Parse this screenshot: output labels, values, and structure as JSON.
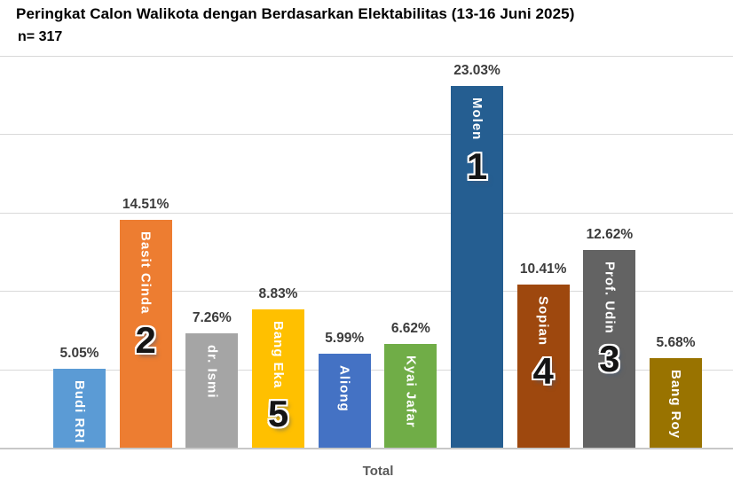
{
  "header": {
    "title": "Peringkat Calon Walikota dengan Berdasarkan Elektabilitas (13-16 Juni 2025)",
    "subtitle": "n= 317"
  },
  "chart_data": {
    "type": "bar",
    "title": "Peringkat Calon Walikota dengan Berdasarkan Elektabilitas (13-16 Juni 2025)",
    "subtitle": "n= 317",
    "sample_size": 317,
    "categories": [
      "Budi RRI",
      "Basit Cinda",
      "dr. Ismi",
      "Bang Eka",
      "Aliong",
      "Kyai Jafar",
      "Molen",
      "Sopian",
      "Prof. Udin",
      "Bang Roy"
    ],
    "values": [
      5.05,
      14.51,
      7.26,
      8.83,
      5.99,
      6.62,
      23.03,
      10.41,
      12.62,
      5.68
    ],
    "value_labels": [
      "5.05%",
      "14.51%",
      "7.26%",
      "8.83%",
      "5.99%",
      "6.62%",
      "23.03%",
      "10.41%",
      "12.62%",
      "5.68%"
    ],
    "ranks": [
      "",
      "2",
      "",
      "5",
      "",
      "",
      "1",
      "4",
      "3",
      ""
    ],
    "bar_colors": [
      "#5B9BD5",
      "#ED7D31",
      "#A5A5A5",
      "#FFC000",
      "#4472C4",
      "#70AD47",
      "#255E91",
      "#9E480E",
      "#636363",
      "#997300"
    ],
    "xlabel": "Total",
    "ylabel": "",
    "ylim": [
      0,
      25
    ],
    "grid": true,
    "grid_step": 5,
    "grid_color": "#D9D9D9",
    "legend_position": "none"
  }
}
